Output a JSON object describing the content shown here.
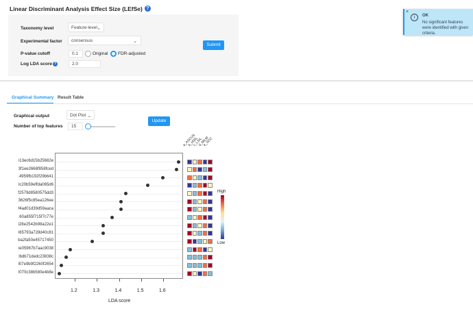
{
  "title": "Linear Discriminant Analysis Effect Size (LEfSe)",
  "form": {
    "taxonomy_label": "Taxonomy level",
    "taxonomy_value": "Feature-level",
    "factor_label": "Experimental factor",
    "factor_value": "consensus",
    "pvalue_label": "P-value cutoff",
    "pvalue_value": "0.1",
    "radio_original": "Original",
    "radio_fdr": "FDR-adjusted",
    "radio_selected": "FDR-adjusted",
    "lda_label": "Log LDA score",
    "lda_value": "2.0",
    "submit": "Submit"
  },
  "toast": {
    "title": "OK",
    "message": "No significant features were identified with given criteria."
  },
  "tabs": [
    {
      "label": "Graphical Summary",
      "active": true
    },
    {
      "label": "Result Table",
      "active": false
    }
  ],
  "controls": {
    "output_label": "Graphical output",
    "output_value": "Dot Plot",
    "top_label": "Number of top features",
    "top_value": "15",
    "update": "Update"
  },
  "chart_data": {
    "type": "scatter",
    "xlabel": "LDA score",
    "xticks": [
      1.2,
      1.3,
      1.4,
      1.5,
      1.6
    ],
    "xlim": [
      1.11,
      1.69
    ],
    "features": [
      "i13ec6d15b25682e",
      "3f1ee2668f858fced",
      ".4959fb192f29b641",
      "lc20b59effda065d6",
      "f2579d8580575dd3",
      "3626f5c85ea126ee",
      "f4ad01d39d59aaca",
      ".60a855f715f7c77e",
      "i28e2542b98a22e1",
      "l65793a728d40c81",
      "ba2fa50e45717450",
      "ie05967b7aac9038",
      "lbdb71dedc23838c",
      "l07e9b9f2260f2654",
      "l070c38b580e4b8e"
    ],
    "values": [
      1.67,
      1.66,
      1.6,
      1.53,
      1.43,
      1.41,
      1.41,
      1.37,
      1.33,
      1.33,
      1.28,
      1.18,
      1.16,
      1.14,
      1.13
    ],
    "heatmap_columns": [
      "a_ASCUS",
      "b_HSIL",
      "c_LSIL",
      "d_NILM",
      "e_SCC"
    ],
    "heatmap_levels": [
      [
        "B",
        "C",
        "O",
        "B",
        "R"
      ],
      [
        "C",
        "O",
        "B",
        "L",
        "R"
      ],
      [
        "O",
        "C",
        "L",
        "B",
        "R"
      ],
      [
        "B",
        "L",
        "O",
        "R",
        "C"
      ],
      [
        "C",
        "L",
        "O",
        "R",
        "B"
      ],
      [
        "R",
        "L",
        "C",
        "O",
        "B"
      ],
      [
        "R",
        "L",
        "C",
        "O",
        "B"
      ],
      [
        "L",
        "C",
        "O",
        "R",
        "B"
      ],
      [
        "R",
        "L",
        "C",
        "O",
        "B"
      ],
      [
        "R",
        "C",
        "L",
        "O",
        "B"
      ],
      [
        "R",
        "B",
        "L",
        "C",
        "O"
      ],
      [
        "L",
        "R",
        "O",
        "B",
        "C"
      ],
      [
        "L",
        "L",
        "L",
        "O",
        "R"
      ],
      [
        "L",
        "L",
        "L",
        "O",
        "R"
      ],
      [
        "R",
        "C",
        "B",
        "O",
        "L"
      ]
    ],
    "level_colors": {
      "B": "#313695",
      "L": "#86bedc",
      "C": "#fdf5c0",
      "O": "#f46d43",
      "R": "#a50026"
    },
    "legend_high": "High",
    "legend_low": "Low"
  }
}
